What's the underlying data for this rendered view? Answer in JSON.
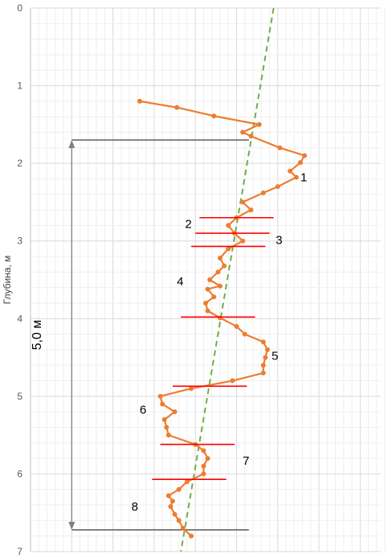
{
  "chart_data": {
    "type": "line",
    "ylabel": "Глубина, м",
    "ylim": [
      7,
      0
    ],
    "yticks": [
      0,
      1,
      2,
      3,
      4,
      5,
      6,
      7
    ],
    "xlim": [
      0,
      85
    ],
    "grid": true,
    "colors": {
      "profile": "#ED7D31",
      "trend": "#70AD47",
      "boundaries": "#FF0000",
      "dimension": "#7F7F7F",
      "grid": "#D9D9D9",
      "minor_grid": "#EFEFEF"
    },
    "series": [
      {
        "values": [
          {
            "x": 26.5,
            "y": 1.2
          },
          {
            "x": 35.5,
            "y": 1.28
          },
          {
            "x": 44.5,
            "y": 1.39
          },
          {
            "x": 55.5,
            "y": 1.5
          },
          {
            "x": 51.5,
            "y": 1.6
          },
          {
            "x": 53.5,
            "y": 1.65
          },
          {
            "x": 60.5,
            "y": 1.8
          },
          {
            "x": 66.5,
            "y": 1.9
          },
          {
            "x": 65.5,
            "y": 1.99
          },
          {
            "x": 63.0,
            "y": 2.1
          },
          {
            "x": 64.5,
            "y": 2.18
          },
          {
            "x": 60.0,
            "y": 2.3
          },
          {
            "x": 56.5,
            "y": 2.38
          },
          {
            "x": 51.5,
            "y": 2.5
          },
          {
            "x": 53.5,
            "y": 2.6
          },
          {
            "x": 50.0,
            "y": 2.7
          },
          {
            "x": 48.0,
            "y": 2.8
          },
          {
            "x": 49.5,
            "y": 2.9
          },
          {
            "x": 51.5,
            "y": 3.0
          },
          {
            "x": 48.0,
            "y": 3.1
          },
          {
            "x": 46.0,
            "y": 3.22
          },
          {
            "x": 47.0,
            "y": 3.32
          },
          {
            "x": 45.5,
            "y": 3.4
          },
          {
            "x": 43.5,
            "y": 3.5
          },
          {
            "x": 46.0,
            "y": 3.58
          },
          {
            "x": 43.0,
            "y": 3.62
          },
          {
            "x": 44.5,
            "y": 3.72
          },
          {
            "x": 42.5,
            "y": 3.8
          },
          {
            "x": 43.0,
            "y": 3.9
          },
          {
            "x": 46.0,
            "y": 3.99
          },
          {
            "x": 50.0,
            "y": 4.1
          },
          {
            "x": 52.0,
            "y": 4.2
          },
          {
            "x": 56.5,
            "y": 4.3
          },
          {
            "x": 57.5,
            "y": 4.4
          },
          {
            "x": 57.0,
            "y": 4.5
          },
          {
            "x": 56.5,
            "y": 4.6
          },
          {
            "x": 56.5,
            "y": 4.7
          },
          {
            "x": 49.0,
            "y": 4.8
          },
          {
            "x": 39.0,
            "y": 4.9
          },
          {
            "x": 31.5,
            "y": 5.0
          },
          {
            "x": 32.0,
            "y": 5.1
          },
          {
            "x": 35.0,
            "y": 5.2
          },
          {
            "x": 32.5,
            "y": 5.3
          },
          {
            "x": 33.0,
            "y": 5.4
          },
          {
            "x": 33.5,
            "y": 5.5
          },
          {
            "x": 40.0,
            "y": 5.62
          },
          {
            "x": 42.0,
            "y": 5.7
          },
          {
            "x": 43.0,
            "y": 5.8
          },
          {
            "x": 42.0,
            "y": 5.9
          },
          {
            "x": 42.0,
            "y": 6.0
          },
          {
            "x": 38.0,
            "y": 6.1
          },
          {
            "x": 36.0,
            "y": 6.2
          },
          {
            "x": 33.5,
            "y": 6.28
          },
          {
            "x": 34.5,
            "y": 6.35
          },
          {
            "x": 34.0,
            "y": 6.42
          },
          {
            "x": 35.0,
            "y": 6.52
          },
          {
            "x": 36.0,
            "y": 6.6
          },
          {
            "x": 37.0,
            "y": 6.7
          },
          {
            "x": 39.0,
            "y": 6.8
          }
        ]
      }
    ],
    "trendline": {
      "style": "dashed",
      "points": [
        {
          "x": 59.0,
          "y": 0.0
        },
        {
          "x": 36.5,
          "y": 7.0
        }
      ]
    },
    "boundaries": [
      {
        "y": 2.7,
        "x_from": 41.0,
        "x_to": 59.0
      },
      {
        "y": 2.9,
        "x_from": 40.0,
        "x_to": 58.0
      },
      {
        "y": 3.07,
        "x_from": 39.0,
        "x_to": 57.0
      },
      {
        "y": 3.98,
        "x_from": 36.5,
        "x_to": 54.5
      },
      {
        "y": 4.87,
        "x_from": 34.5,
        "x_to": 52.5
      },
      {
        "y": 5.62,
        "x_from": 31.5,
        "x_to": 49.5
      },
      {
        "y": 6.07,
        "x_from": 29.5,
        "x_to": 47.5
      }
    ],
    "layers": [
      {
        "label": "1",
        "x": 65.5,
        "y": 2.18
      },
      {
        "label": "2",
        "x": 37.5,
        "y": 2.78
      },
      {
        "label": "3",
        "x": 59.5,
        "y": 2.99
      },
      {
        "label": "4",
        "x": 35.5,
        "y": 3.52
      },
      {
        "label": "5",
        "x": 58.5,
        "y": 4.48
      },
      {
        "label": "6",
        "x": 26.5,
        "y": 5.17
      },
      {
        "label": "7",
        "x": 51.5,
        "y": 5.83
      },
      {
        "label": "8",
        "x": 24.5,
        "y": 6.42
      }
    ],
    "dimension": {
      "label": "5,0 м",
      "from": 1.7,
      "to": 6.72,
      "x": 10.0,
      "x_end": 53.0,
      "text_x": 2.5
    }
  }
}
